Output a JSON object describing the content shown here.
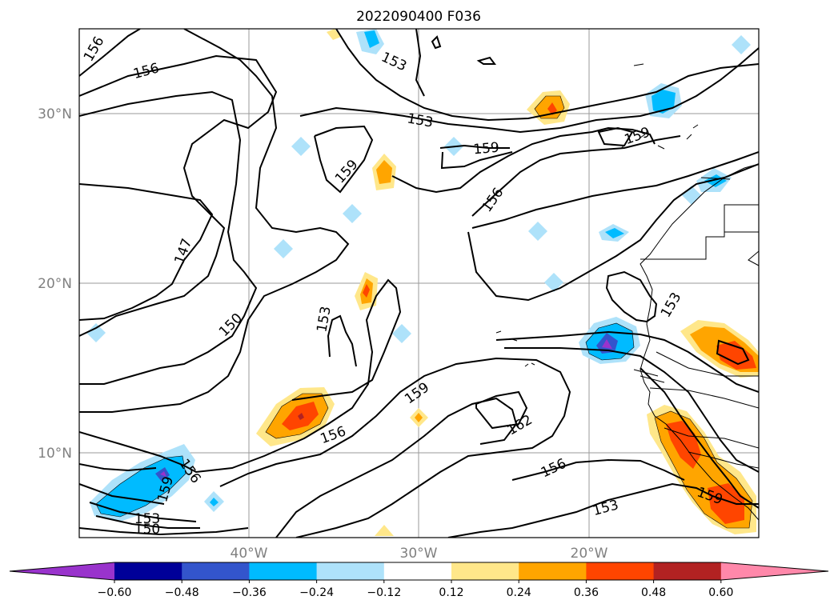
{
  "title": "2022090400 F036",
  "lat_labels": [
    {
      "key": "30",
      "text": "30°N"
    },
    {
      "key": "20",
      "text": "20°N"
    },
    {
      "key": "10",
      "text": "10°N"
    }
  ],
  "lon_labels": [
    {
      "key": "40",
      "text": "40°W"
    },
    {
      "key": "30",
      "text": "30°W"
    },
    {
      "key": "20",
      "text": "20°W"
    }
  ],
  "contour_labels": {
    "c156a": "156",
    "c156b": "156",
    "c153a": "153",
    "c153b": "153",
    "c159a": "159",
    "c159b": "159",
    "c159c": "159",
    "c156c": "156",
    "c147": "147",
    "c150a": "150",
    "c153c": "153",
    "c153d": "153",
    "c159d": "159",
    "c156d": "156",
    "c162": "162",
    "c156e": "156",
    "c153e": "153",
    "c156f": "156",
    "c159e": "159",
    "c153f": "153",
    "c150b": "150",
    "c159f": "159"
  },
  "colorbar": {
    "ticks": [
      "−0.60",
      "−0.48",
      "−0.36",
      "−0.24",
      "−0.12",
      "0.12",
      "0.24",
      "0.36",
      "0.48",
      "0.60"
    ],
    "colors": [
      "#9933cc",
      "#000099",
      "#3355cc",
      "#00bbff",
      "#aee2fa",
      "#ffffff",
      "#ffe78a",
      "#ffa500",
      "#ff4500",
      "#b22222",
      "#ff88aa"
    ]
  }
}
